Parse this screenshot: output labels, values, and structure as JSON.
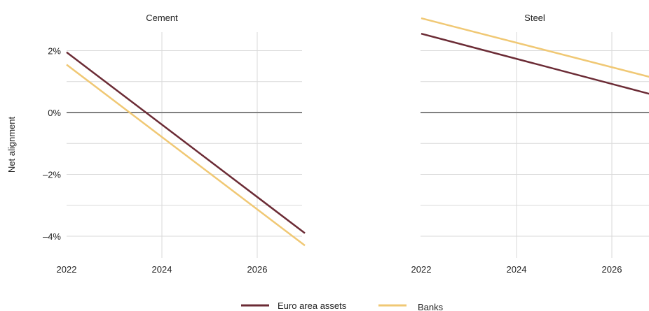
{
  "chart_data": {
    "type": "line",
    "ylabel": "Net alignment",
    "ylim": [
      -4.7,
      2.6
    ],
    "yticks": [
      2,
      0,
      -2,
      -4
    ],
    "ytick_labels": [
      "2%",
      "0%",
      "–2%",
      "–4%"
    ],
    "xticks": [
      2022,
      2024,
      2026
    ],
    "xtick_labels": [
      "2022",
      "2024",
      "2026"
    ],
    "grid": true,
    "legend_position": "bottom",
    "series_styles": [
      {
        "name": "Euro area assets",
        "color": "#6b2b35"
      },
      {
        "name": "Banks",
        "color": "#f0c874"
      }
    ],
    "panels": [
      {
        "title": "Cement",
        "xlim": [
          2022,
          2027
        ],
        "series": [
          {
            "name": "Euro area assets",
            "x": [
              2022,
              2027
            ],
            "y": [
              1.95,
              -3.9
            ]
          },
          {
            "name": "Banks",
            "x": [
              2022,
              2027
            ],
            "y": [
              1.55,
              -4.3
            ]
          }
        ]
      },
      {
        "title": "Steel",
        "xlim": [
          2022,
          2026.8
        ],
        "series": [
          {
            "name": "Euro area assets",
            "x": [
              2022,
              2026.8
            ],
            "y": [
              2.55,
              0.6
            ]
          },
          {
            "name": "Banks",
            "x": [
              2022,
              2026.8
            ],
            "y": [
              3.05,
              1.15
            ]
          }
        ]
      }
    ]
  }
}
